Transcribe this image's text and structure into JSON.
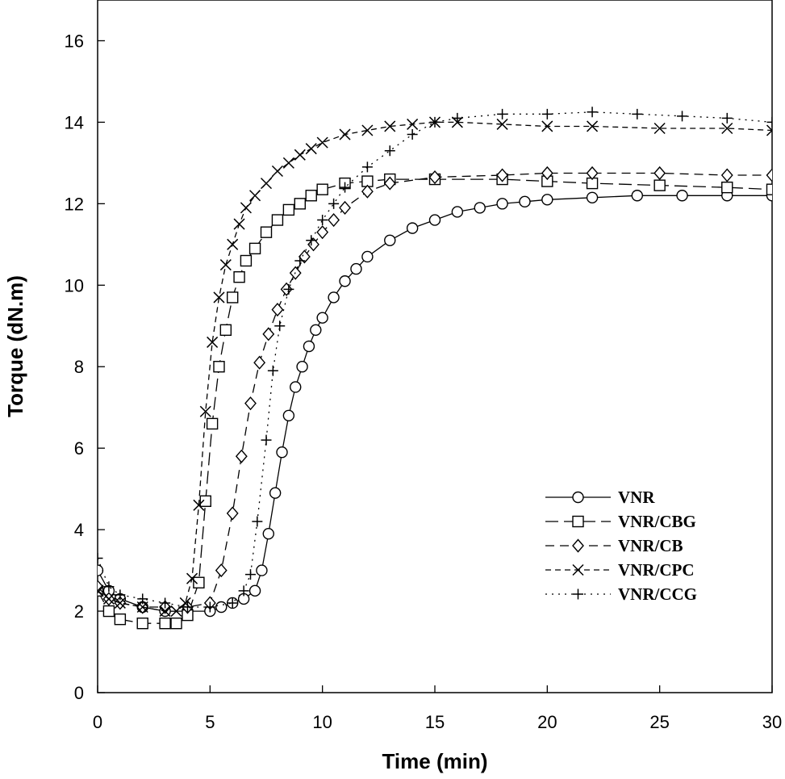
{
  "chart_data": {
    "type": "line",
    "title": "",
    "xlabel": "Time (min)",
    "ylabel": "Torque (dN.m)",
    "xlim": [
      0,
      30
    ],
    "ylim": [
      0,
      17
    ],
    "xticks": [
      0,
      5,
      10,
      15,
      20,
      25,
      30
    ],
    "yticks": [
      0,
      2,
      4,
      6,
      8,
      10,
      12,
      14,
      16
    ],
    "grid": false,
    "legend_position": "bottom-right",
    "series": [
      {
        "name": "VNR",
        "marker": "circle",
        "dash": "solid",
        "x": [
          0,
          0.5,
          1,
          2,
          3,
          4,
          5,
          5.5,
          6,
          6.5,
          7,
          7.3,
          7.6,
          7.9,
          8.2,
          8.5,
          8.8,
          9.1,
          9.4,
          9.7,
          10,
          10.5,
          11,
          11.5,
          12,
          13,
          14,
          15,
          16,
          17,
          18,
          19,
          20,
          22,
          24,
          26,
          28,
          30
        ],
        "y": [
          3.0,
          2.5,
          2.3,
          2.1,
          2.0,
          2.0,
          2.0,
          2.1,
          2.2,
          2.3,
          2.5,
          3.0,
          3.9,
          4.9,
          5.9,
          6.8,
          7.5,
          8.0,
          8.5,
          8.9,
          9.2,
          9.7,
          10.1,
          10.4,
          10.7,
          11.1,
          11.4,
          11.6,
          11.8,
          11.9,
          12.0,
          12.05,
          12.1,
          12.15,
          12.2,
          12.2,
          12.2,
          12.2
        ]
      },
      {
        "name": "VNR/CBG",
        "marker": "square",
        "dash": "longdash",
        "x": [
          0,
          0.5,
          1,
          2,
          3,
          3.5,
          4,
          4.5,
          4.8,
          5.1,
          5.4,
          5.7,
          6,
          6.3,
          6.6,
          7,
          7.5,
          8,
          8.5,
          9,
          9.5,
          10,
          11,
          12,
          13,
          15,
          18,
          20,
          22,
          25,
          28,
          30
        ],
        "y": [
          2.5,
          2.0,
          1.8,
          1.7,
          1.7,
          1.7,
          1.9,
          2.7,
          4.7,
          6.6,
          8.0,
          8.9,
          9.7,
          10.2,
          10.6,
          10.9,
          11.3,
          11.6,
          11.85,
          12.0,
          12.2,
          12.35,
          12.5,
          12.55,
          12.6,
          12.6,
          12.6,
          12.55,
          12.5,
          12.45,
          12.4,
          12.35
        ]
      },
      {
        "name": "VNR/CB",
        "marker": "diamond",
        "dash": "dashed",
        "x": [
          0,
          0.5,
          1,
          2,
          3,
          4,
          5,
          5.5,
          6,
          6.4,
          6.8,
          7.2,
          7.6,
          8,
          8.4,
          8.8,
          9.2,
          9.6,
          10,
          10.5,
          11,
          12,
          13,
          15,
          18,
          20,
          22,
          25,
          28,
          30
        ],
        "y": [
          2.6,
          2.3,
          2.2,
          2.1,
          2.1,
          2.1,
          2.2,
          3.0,
          4.4,
          5.8,
          7.1,
          8.1,
          8.8,
          9.4,
          9.9,
          10.3,
          10.7,
          11.0,
          11.3,
          11.6,
          11.9,
          12.3,
          12.5,
          12.65,
          12.7,
          12.75,
          12.75,
          12.75,
          12.7,
          12.7
        ]
      },
      {
        "name": "VNR/CPC",
        "marker": "x",
        "dash": "shortdash",
        "x": [
          0,
          0.5,
          1,
          2,
          3,
          3.5,
          3.9,
          4.2,
          4.5,
          4.8,
          5.1,
          5.4,
          5.7,
          6,
          6.3,
          6.6,
          7,
          7.5,
          8,
          8.5,
          9,
          9.5,
          10,
          11,
          12,
          13,
          14,
          15,
          16,
          18,
          20,
          22,
          25,
          28,
          30
        ],
        "y": [
          2.5,
          2.3,
          2.2,
          2.1,
          2.0,
          2.0,
          2.2,
          2.8,
          4.6,
          6.9,
          8.6,
          9.7,
          10.5,
          11.0,
          11.5,
          11.9,
          12.2,
          12.5,
          12.8,
          13.0,
          13.2,
          13.35,
          13.5,
          13.7,
          13.8,
          13.9,
          13.95,
          14.0,
          14.0,
          13.95,
          13.9,
          13.9,
          13.85,
          13.85,
          13.8
        ]
      },
      {
        "name": "VNR/CCG",
        "marker": "plus",
        "dash": "dotted",
        "x": [
          0,
          0.5,
          1,
          2,
          3,
          4,
          5,
          6,
          6.5,
          6.8,
          7.1,
          7.5,
          7.8,
          8.1,
          8.5,
          9,
          9.5,
          10,
          10.5,
          11,
          12,
          13,
          14,
          15,
          16,
          18,
          20,
          22,
          24,
          26,
          28,
          30
        ],
        "y": [
          3.3,
          2.6,
          2.4,
          2.3,
          2.2,
          2.1,
          2.1,
          2.2,
          2.5,
          2.9,
          4.2,
          6.2,
          7.9,
          9.0,
          9.9,
          10.6,
          11.1,
          11.6,
          12.0,
          12.4,
          12.9,
          13.3,
          13.7,
          14.0,
          14.1,
          14.2,
          14.2,
          14.25,
          14.2,
          14.15,
          14.1,
          14.0
        ]
      }
    ]
  }
}
